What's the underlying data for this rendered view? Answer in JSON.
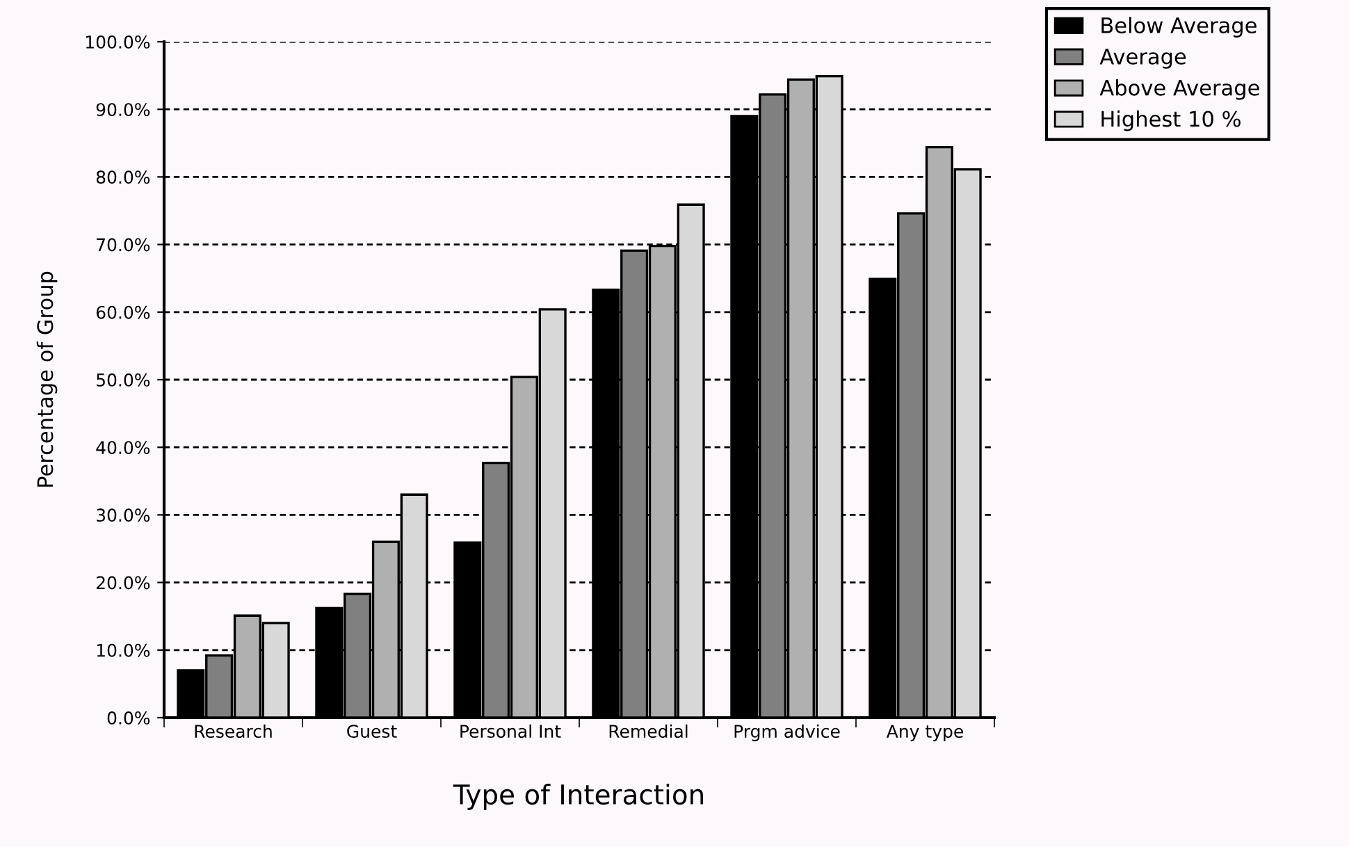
{
  "chart_data": {
    "type": "bar",
    "xlabel": "Type of Interaction",
    "ylabel": "Percentage of Group",
    "categories": [
      "Research",
      "Guest",
      "Personal Int",
      "Remedial",
      "Prgm advice",
      "Any type"
    ],
    "series": [
      {
        "name": "Below Average",
        "color": "#000000",
        "values": [
          7.0,
          16.2,
          25.9,
          63.3,
          89.0,
          64.9
        ]
      },
      {
        "name": "Average",
        "color": "#808080",
        "values": [
          9.2,
          18.3,
          37.7,
          69.1,
          92.2,
          74.6
        ]
      },
      {
        "name": "Above Average",
        "color": "#b0b0b0",
        "values": [
          15.1,
          26.0,
          50.4,
          69.8,
          94.4,
          84.4
        ]
      },
      {
        "name": "Highest 10 %",
        "color": "#d8d8d8",
        "values": [
          14.0,
          33.0,
          60.4,
          75.9,
          94.9,
          81.1
        ]
      }
    ],
    "ylim": [
      0,
      100
    ],
    "yticks": [
      {
        "value": 0,
        "label": "0.0%"
      },
      {
        "value": 10,
        "label": "10.0%"
      },
      {
        "value": 20,
        "label": "20.0%"
      },
      {
        "value": 30,
        "label": "30.0%"
      },
      {
        "value": 40,
        "label": "40.0%"
      },
      {
        "value": 50,
        "label": "50.0%"
      },
      {
        "value": 60,
        "label": "60.0%"
      },
      {
        "value": 70,
        "label": "70.0%"
      },
      {
        "value": 80,
        "label": "80.0%"
      },
      {
        "value": 90,
        "label": "90.0%"
      },
      {
        "value": 100,
        "label": "100.0%"
      }
    ],
    "grid": "y",
    "legend": "top right"
  }
}
